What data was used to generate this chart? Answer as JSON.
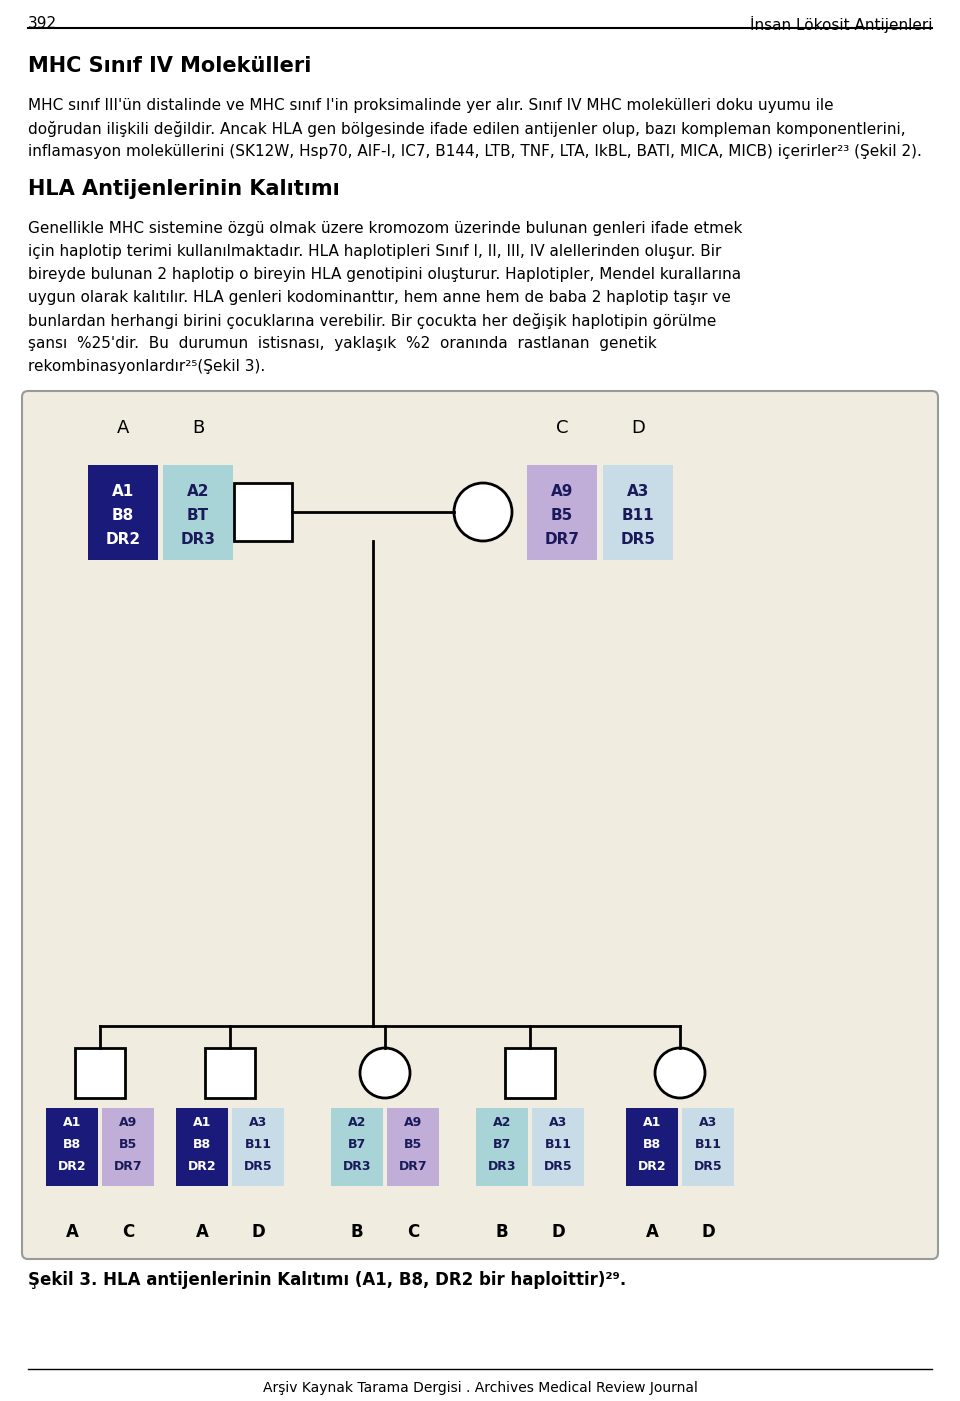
{
  "page_number": "392",
  "header_right": "İnsan Lökosit Antijenleri",
  "section1_title": "MHC Sınıf IV Molekülleri",
  "section1_para_lines": [
    "MHC sınıf III'ün distalinde ve MHC sınıf I'in proksimalinde yer alır. Sınıf IV MHC molekülleri doku uyumu ile",
    "doğrudan ilişkili değildir. Ancak HLA gen bölgesinde ifade edilen antijenler olup, bazı kompleman komponentlerini,",
    "inflamasyon moleküllerini (SK12W, Hsp70, AIF-I, IC7, B144, LTB, TNF, LTA, IkBL, BATI, MICA, MICB) içerirler²³ (Şekil 2)."
  ],
  "section2_title": "HLA Antijenlerinin Kalıtımı",
  "section2_para_lines": [
    "Genellikle MHC sistemine özgü olmak üzere kromozom üzerinde bulunan genleri ifade etmek",
    "için haplotip terimi kullanılmaktadır. HLA haplotipleri Sınıf I, II, III, IV alellerinden oluşur. Bir",
    "bireyde bulunan 2 haplotip o bireyin HLA genotipini oluşturur. Haplotipler, Mendel kurallarına",
    "uygun olarak kalıtılır. HLA genleri kodominanttır, hem anne hem de baba 2 haplotip taşır ve",
    "bunlardan herhangi birini çocuklarına verebilir. Bir çocukta her değişik haplotipin görülme",
    "şansı  %25'dir.  Bu  durumun  istisnası,  yaklaşık  %2  oranında  rastlanan  genetik",
    "rekombinasyonlardır²⁵(Şekil 3)."
  ],
  "caption": "Şekil 3. HLA antijenlerinin Kalıtımı (A1, B8, DR2 bir haploittir)²⁹.",
  "footer": "Arşiv Kaynak Tarama Dergisi . Archives Medical Review Journal",
  "bg_color": "#ffffff",
  "diagram_bg": "#f0ece0",
  "dark_blue": "#1a1a7a",
  "light_teal": "#a8d4d8",
  "light_purple": "#c0aed8",
  "very_light_blue": "#c8dce8"
}
